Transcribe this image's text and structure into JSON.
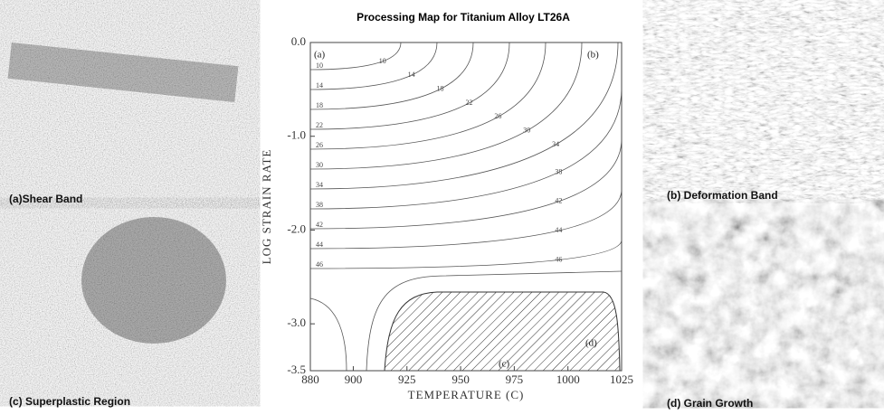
{
  "title": "Processing Map for Titanium Alloy LT26A",
  "chart_data": {
    "type": "contour",
    "x_label": "TEMPERATURE (C)",
    "y_label": "LOG STRAIN RATE",
    "xlim": [
      880,
      1025
    ],
    "xticks": [
      880,
      900,
      925,
      950,
      975,
      1000,
      1025
    ],
    "ylim": [
      -3.5,
      0
    ],
    "yticks": [
      {
        "value": 0,
        "label": "0.0"
      },
      {
        "value": -1,
        "label": "-1.0"
      },
      {
        "value": -2,
        "label": "-2.0"
      },
      {
        "value": -3,
        "label": "-3.0"
      },
      -3.5
    ],
    "contour_levels": [
      10,
      14,
      18,
      22,
      26,
      30,
      34,
      38,
      42,
      44,
      46
    ],
    "regions": [
      "(a)",
      "(b)",
      "(c)",
      "(d)"
    ]
  },
  "panels": [
    "(a)Shear Band",
    "(b) Deformation Band",
    "(c) Superplastic Region",
    "(d) Grain Growth"
  ]
}
